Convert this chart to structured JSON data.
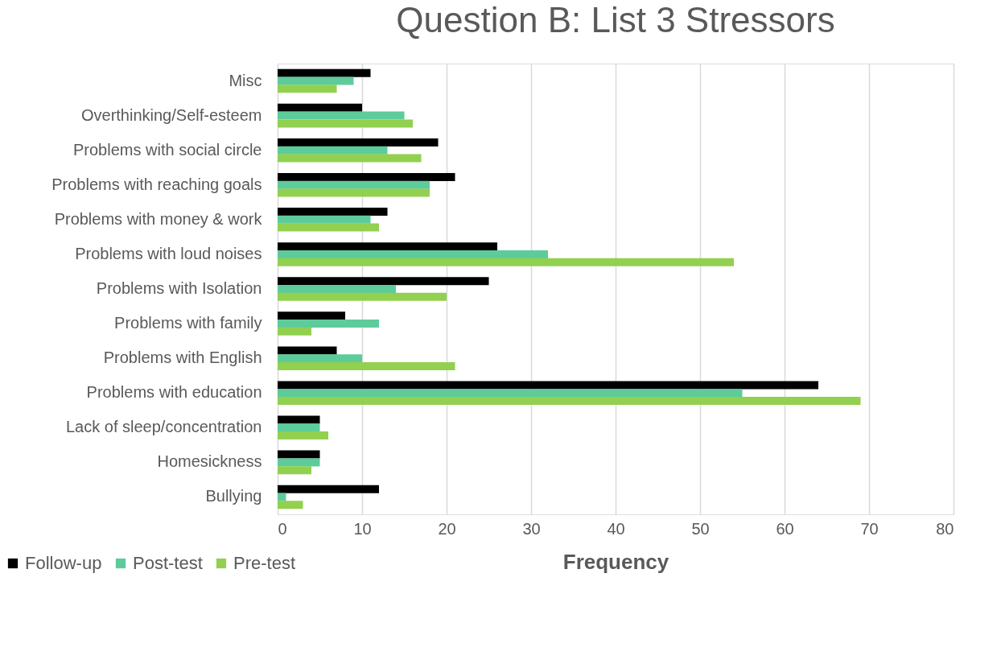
{
  "chart_data": {
    "type": "bar",
    "orientation": "horizontal",
    "title": "Question B: List 3 Stressors",
    "xlabel": "Frequency",
    "categories": [
      "Misc",
      "Overthinking/Self-esteem",
      "Problems with social circle",
      "Problems with reaching goals",
      "Problems with money & work",
      "Problems with loud noises",
      "Problems with Isolation",
      "Problems with family",
      "Problems with English",
      "Problems with education",
      "Lack of sleep/concentration",
      "Homesickness",
      "Bullying"
    ],
    "series": [
      {
        "name": "Follow-up",
        "color": "#000000",
        "values": [
          11,
          10,
          19,
          21,
          13,
          26,
          25,
          8,
          7,
          64,
          5,
          5,
          12
        ]
      },
      {
        "name": "Post-test",
        "color": "#5ecb9b",
        "values": [
          9,
          15,
          13,
          18,
          11,
          32,
          14,
          12,
          10,
          55,
          5,
          5,
          1
        ]
      },
      {
        "name": "Pre-test",
        "color": "#92d050",
        "values": [
          7,
          16,
          17,
          18,
          12,
          54,
          20,
          4,
          21,
          69,
          6,
          4,
          3
        ]
      }
    ],
    "xlim": [
      0,
      80
    ],
    "xticks": [
      0,
      10,
      20,
      30,
      40,
      50,
      60,
      70,
      80
    ],
    "grid": "x",
    "legend": "bottom"
  }
}
